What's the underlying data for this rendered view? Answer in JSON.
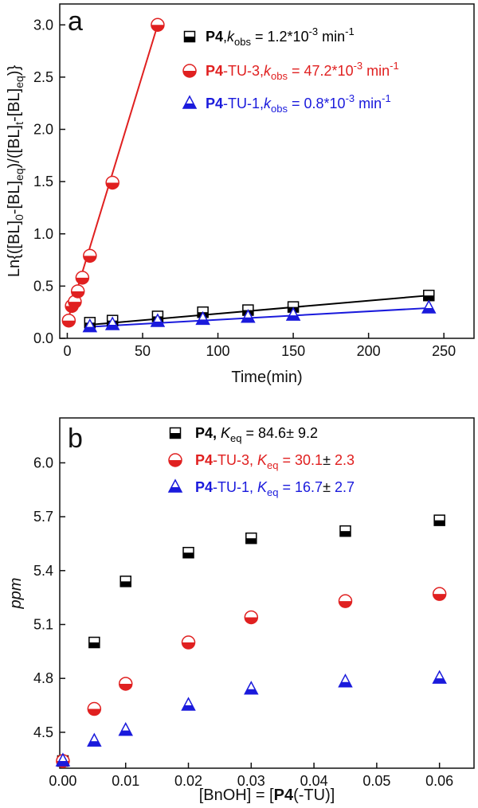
{
  "chart_data": [
    {
      "type": "scatter",
      "panel": "a",
      "xlabel": "Time(min)",
      "ylabel": "Ln{([BL]0-[BL]eq)/([BL]t-[BL]eq)}",
      "xlim": [
        -5,
        270
      ],
      "ylim": [
        0,
        3.2
      ],
      "xticks": [
        0,
        50,
        100,
        150,
        200,
        250
      ],
      "yticks": [
        0.0,
        0.5,
        1.0,
        1.5,
        2.0,
        2.5,
        3.0
      ],
      "xtick_labels": [
        "0",
        "50",
        "100",
        "150",
        "200",
        "250"
      ],
      "ytick_labels": [
        "0.0",
        "0.5",
        "1.0",
        "1.5",
        "2.0",
        "2.5",
        "3.0"
      ],
      "series": [
        {
          "name": "P4",
          "marker": "square-half",
          "color": "#000000",
          "line_color": "#000000",
          "x": [
            15,
            30,
            60,
            90,
            120,
            150,
            240
          ],
          "y": [
            0.15,
            0.17,
            0.21,
            0.25,
            0.27,
            0.3,
            0.41
          ],
          "fit": [
            [
              15,
              0.13
            ],
            [
              240,
              0.41
            ]
          ],
          "legend": {
            "bold": "P4",
            "mid": ",",
            "k": "k",
            "sub": "obs",
            "value": " = 1.2*10",
            "sup": "-3",
            "unit": " min",
            "sup2": "-1"
          }
        },
        {
          "name": "P4-TU-3",
          "marker": "circle-half",
          "color": "#e02020",
          "line_color": "#e02020",
          "x": [
            1,
            3,
            5,
            7,
            10,
            15,
            30,
            60
          ],
          "y": [
            0.17,
            0.31,
            0.35,
            0.45,
            0.58,
            0.79,
            1.49,
            3.0
          ],
          "fit": [
            [
              0,
              0.16
            ],
            [
              60,
              3.0
            ]
          ],
          "legend": {
            "bold": "P4",
            "mid": "-TU-3,",
            "k": "k",
            "sub": "obs",
            "value": " = 47.2*10",
            "sup": "-3",
            "unit": " min",
            "sup2": "-1"
          }
        },
        {
          "name": "P4-TU-1",
          "marker": "triangle-half",
          "color": "#1a1adc",
          "line_color": "#1a1adc",
          "x": [
            15,
            30,
            60,
            90,
            120,
            150,
            240
          ],
          "y": [
            0.11,
            0.13,
            0.16,
            0.18,
            0.2,
            0.22,
            0.29
          ],
          "fit": [
            [
              15,
              0.11
            ],
            [
              240,
              0.29
            ]
          ],
          "legend": {
            "bold": "P4",
            "mid": "-TU-1,",
            "k": "k",
            "sub": "obs",
            "value": " = 0.8*10",
            "sup": "-3",
            "unit": " min",
            "sup2": "-1"
          }
        }
      ]
    },
    {
      "type": "scatter",
      "panel": "b",
      "xlabel_pre": "[BnOH] = [",
      "xlabel_bold": "P4",
      "xlabel_post": "(-TU)]",
      "ylabel": "ppm",
      "xlim": [
        -0.0005,
        0.0655
      ],
      "ylim": [
        4.3,
        6.25
      ],
      "xticks": [
        0.0,
        0.01,
        0.02,
        0.03,
        0.04,
        0.05,
        0.06
      ],
      "yticks": [
        4.5,
        4.8,
        5.1,
        5.4,
        5.7,
        6.0
      ],
      "xtick_labels": [
        "0.00",
        "0.01",
        "0.02",
        "0.03",
        "0.04",
        "0.05",
        "0.06"
      ],
      "ytick_labels": [
        "4.5",
        "4.8",
        "5.1",
        "5.4",
        "5.7",
        "6.0"
      ],
      "series": [
        {
          "name": "P4",
          "marker": "square-half",
          "color": "#000000",
          "x": [
            0.0,
            0.005,
            0.01,
            0.02,
            0.03,
            0.045,
            0.06
          ],
          "y": [
            4.34,
            5.0,
            5.34,
            5.5,
            5.58,
            5.62,
            5.68
          ],
          "legend": {
            "bold": "P4,",
            "k": " K",
            "sub": "eq",
            "value": " = 84.6",
            "pm": "±",
            "err": " 9.2"
          }
        },
        {
          "name": "P4-TU-3",
          "marker": "circle-half",
          "color": "#e02020",
          "x": [
            0.0,
            0.005,
            0.01,
            0.02,
            0.03,
            0.045,
            0.06
          ],
          "y": [
            4.34,
            4.63,
            4.77,
            5.0,
            5.14,
            5.23,
            5.27
          ],
          "legend": {
            "bold": "P4",
            "mid": "-TU-3,",
            "k": " K",
            "sub": "eq",
            "value": " = 30.1",
            "pm": "±",
            "err": " 2.3"
          }
        },
        {
          "name": "P4-TU-1",
          "marker": "triangle-half",
          "color": "#1a1adc",
          "x": [
            0.0,
            0.005,
            0.01,
            0.02,
            0.03,
            0.045,
            0.06
          ],
          "y": [
            4.34,
            4.45,
            4.51,
            4.65,
            4.74,
            4.78,
            4.8
          ],
          "legend": {
            "bold": "P4",
            "mid": "-TU-1,",
            "k": " K",
            "sub": "eq",
            "value": " = 16.7",
            "pm": "±",
            "err": " 2.7"
          }
        }
      ]
    }
  ],
  "panels": {
    "a": "a",
    "b": "b"
  },
  "ylabel_a": {
    "pre": "Ln{([BL]",
    "s0": "0",
    "mid1": "-[BL]",
    "s1": "eq",
    "mid2": ")/([BL]",
    "s2": "t",
    "mid3": "-[BL]",
    "s3": "eq",
    "post": ")}"
  }
}
